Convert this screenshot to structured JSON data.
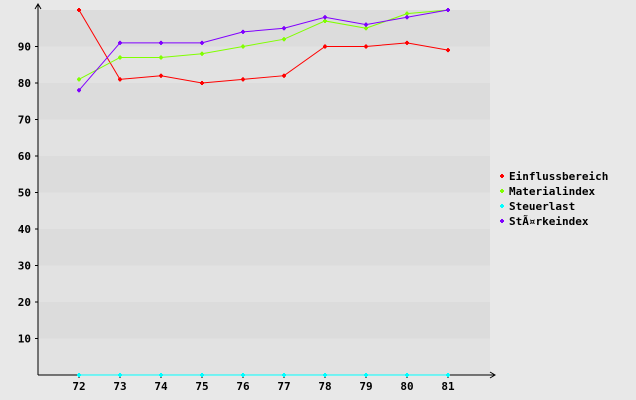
{
  "chart_data": {
    "type": "line",
    "categories": [
      "72",
      "73",
      "74",
      "75",
      "76",
      "77",
      "78",
      "79",
      "80",
      "81"
    ],
    "ylim": [
      0,
      100
    ],
    "yticks": [
      10,
      20,
      30,
      40,
      50,
      60,
      70,
      80,
      90
    ],
    "grid": "alternating horizontal bands",
    "legend_position": "right",
    "series": [
      {
        "name": "Einflussbereich",
        "color": "#ff0000",
        "values": [
          100,
          81,
          82,
          80,
          81,
          82,
          90,
          90,
          91,
          89
        ]
      },
      {
        "name": "Materialindex",
        "color": "#80ff00",
        "values": [
          81,
          87,
          87,
          88,
          90,
          92,
          97,
          95,
          99,
          100
        ]
      },
      {
        "name": "Steuerlast",
        "color": "#00ffff",
        "values": [
          0,
          0,
          0,
          0,
          0,
          0,
          0,
          0,
          0,
          0
        ]
      },
      {
        "name": "StÃ¤rkeindex",
        "color": "#8000ff",
        "values": [
          78,
          91,
          91,
          91,
          94,
          95,
          98,
          96,
          98,
          100
        ]
      }
    ]
  }
}
